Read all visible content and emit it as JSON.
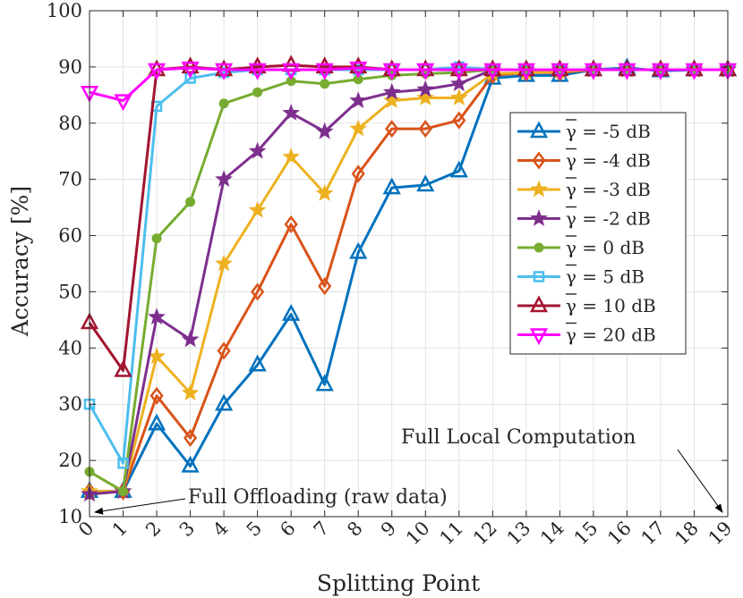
{
  "chart_data": {
    "type": "line",
    "xlabel": "Splitting Point",
    "ylabel": "Accuracy [%]",
    "xlim": [
      0,
      19
    ],
    "ylim": [
      10,
      100
    ],
    "x": [
      0,
      1,
      2,
      3,
      4,
      5,
      6,
      7,
      8,
      9,
      10,
      11,
      12,
      13,
      14,
      15,
      16,
      17,
      18,
      19
    ],
    "xticks": [
      "0",
      "1",
      "2",
      "3",
      "4",
      "5",
      "6",
      "7",
      "8",
      "9",
      "10",
      "11",
      "12",
      "13",
      "14",
      "15",
      "16",
      "17",
      "18",
      "19"
    ],
    "yticks": [
      "10",
      "20",
      "30",
      "40",
      "50",
      "60",
      "70",
      "80",
      "90",
      "100"
    ],
    "grid": true,
    "legend_position": "center-right",
    "series": [
      {
        "name": "γ = -5 dB",
        "color": "#0072BD",
        "marker": "triangle-up",
        "values": [
          14.5,
          14.5,
          26.5,
          19.0,
          30.0,
          37.0,
          46.0,
          33.5,
          57.0,
          68.5,
          69.0,
          71.5,
          88.0,
          88.5,
          88.5,
          89.5,
          89.8,
          89.3,
          89.5,
          89.5
        ]
      },
      {
        "name": "γ = -4 dB",
        "color": "#D95319",
        "marker": "diamond",
        "values": [
          14.5,
          14.5,
          31.5,
          24.0,
          39.5,
          50.0,
          62.0,
          51.0,
          71.0,
          79.0,
          79.0,
          80.5,
          88.5,
          89.0,
          89.0,
          89.5,
          89.5,
          89.5,
          89.5,
          89.5
        ]
      },
      {
        "name": "γ = -3 dB",
        "color": "#EDB120",
        "marker": "star",
        "values": [
          14.5,
          14.5,
          38.5,
          32.0,
          55.0,
          64.5,
          74.0,
          67.5,
          79.0,
          84.0,
          84.5,
          84.5,
          88.8,
          89.0,
          89.2,
          89.5,
          89.5,
          89.5,
          89.5,
          89.5
        ]
      },
      {
        "name": "γ = -2 dB",
        "color": "#7E2F8E",
        "marker": "star",
        "values": [
          14.0,
          14.5,
          45.5,
          41.5,
          70.0,
          75.0,
          81.8,
          78.5,
          84.0,
          85.5,
          86.0,
          87.0,
          89.5,
          89.5,
          89.5,
          89.5,
          89.5,
          89.5,
          89.5,
          89.5
        ]
      },
      {
        "name": "γ = 0 dB",
        "color": "#77AC30",
        "marker": "circle",
        "values": [
          18.0,
          14.5,
          59.5,
          66.0,
          83.5,
          85.5,
          87.5,
          87.0,
          87.8,
          88.5,
          88.8,
          89.0,
          89.5,
          89.5,
          89.5,
          89.5,
          89.5,
          89.5,
          89.5,
          89.5
        ]
      },
      {
        "name": "γ = 5 dB",
        "color": "#4DBEEE",
        "marker": "square",
        "values": [
          30.0,
          19.5,
          83.0,
          88.0,
          89.0,
          89.5,
          89.5,
          89.5,
          89.5,
          89.5,
          89.5,
          90.0,
          89.5,
          89.5,
          89.5,
          89.5,
          89.5,
          89.5,
          89.5,
          89.5
        ]
      },
      {
        "name": "γ = 10 dB",
        "color": "#A2142F",
        "marker": "triangle-up",
        "values": [
          44.5,
          36.0,
          89.5,
          90.0,
          89.5,
          90.0,
          90.3,
          90.0,
          90.0,
          89.5,
          89.5,
          89.5,
          89.5,
          89.5,
          89.5,
          89.5,
          89.5,
          89.5,
          89.5,
          89.5
        ]
      },
      {
        "name": "γ = 20 dB",
        "color": "#FF00FF",
        "marker": "triangle-down",
        "values": [
          85.5,
          84.0,
          89.5,
          89.8,
          89.5,
          89.5,
          89.5,
          89.5,
          89.8,
          89.5,
          89.5,
          89.5,
          89.5,
          89.5,
          89.5,
          89.5,
          89.5,
          89.5,
          89.5,
          89.5
        ]
      }
    ],
    "annotations": [
      {
        "text": "Full Offloading (raw data)",
        "points_to_x": 0,
        "points_to_y": 10
      },
      {
        "text": "Full Local Computation",
        "points_to_x": 19,
        "points_to_y": 10
      }
    ]
  }
}
